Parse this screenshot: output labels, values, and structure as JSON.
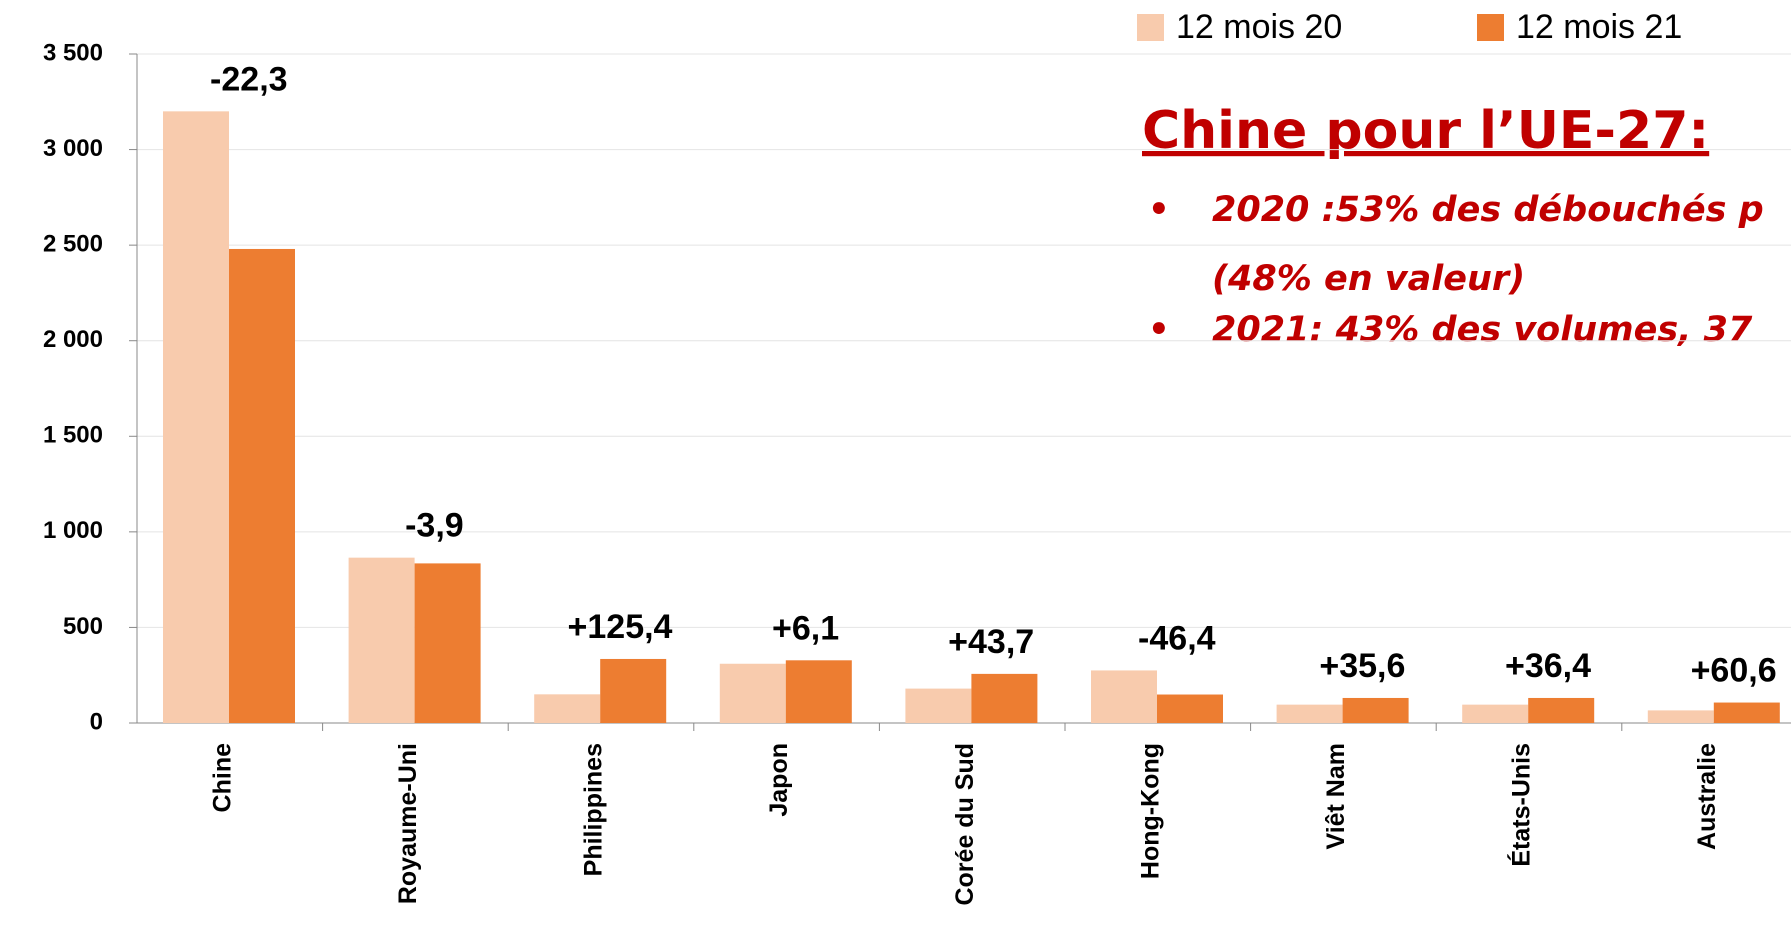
{
  "chart_data": {
    "type": "bar",
    "categories": [
      "Chine",
      "Royaume-Uni",
      "Philippines",
      "Japon",
      "Corée du Sud",
      "Hong-Kong",
      "Viêt Nam",
      "États-Unis",
      "Australie"
    ],
    "series": [
      {
        "name": "12 mois 20",
        "color": "#f8cbad",
        "values": [
          3200,
          865,
          150,
          310,
          180,
          275,
          96,
          96,
          66
        ]
      },
      {
        "name": "12 mois 21",
        "color": "#ed7d31",
        "values": [
          2480,
          835,
          335,
          328,
          257,
          149,
          131,
          131,
          107
        ]
      }
    ],
    "change_labels": [
      "-22,3",
      "-3,9",
      "+125,4",
      "+6,1",
      "+43,7",
      "-46,4",
      "+35,6",
      "+36,4",
      "+60,6"
    ],
    "ylim": [
      0,
      3500
    ],
    "yticks": [
      0,
      500,
      {
        "value": 1000,
        "label": "1 000"
      },
      {
        "value": 1500,
        "label": "1 500"
      },
      {
        "value": 2000,
        "label": "2 000"
      },
      {
        "value": 2500,
        "label": "2 500"
      },
      {
        "value": 3000,
        "label": "3 000"
      },
      {
        "value": 3500,
        "label": "3 500"
      }
    ],
    "grid": true,
    "legend": "top",
    "annotation": {
      "title": "Chine pour l’UE-27:",
      "bullets": [
        "2020 :53% des débouchés p",
        "(48% en valeur)",
        "2021: 43% des volumes, 37"
      ]
    }
  }
}
